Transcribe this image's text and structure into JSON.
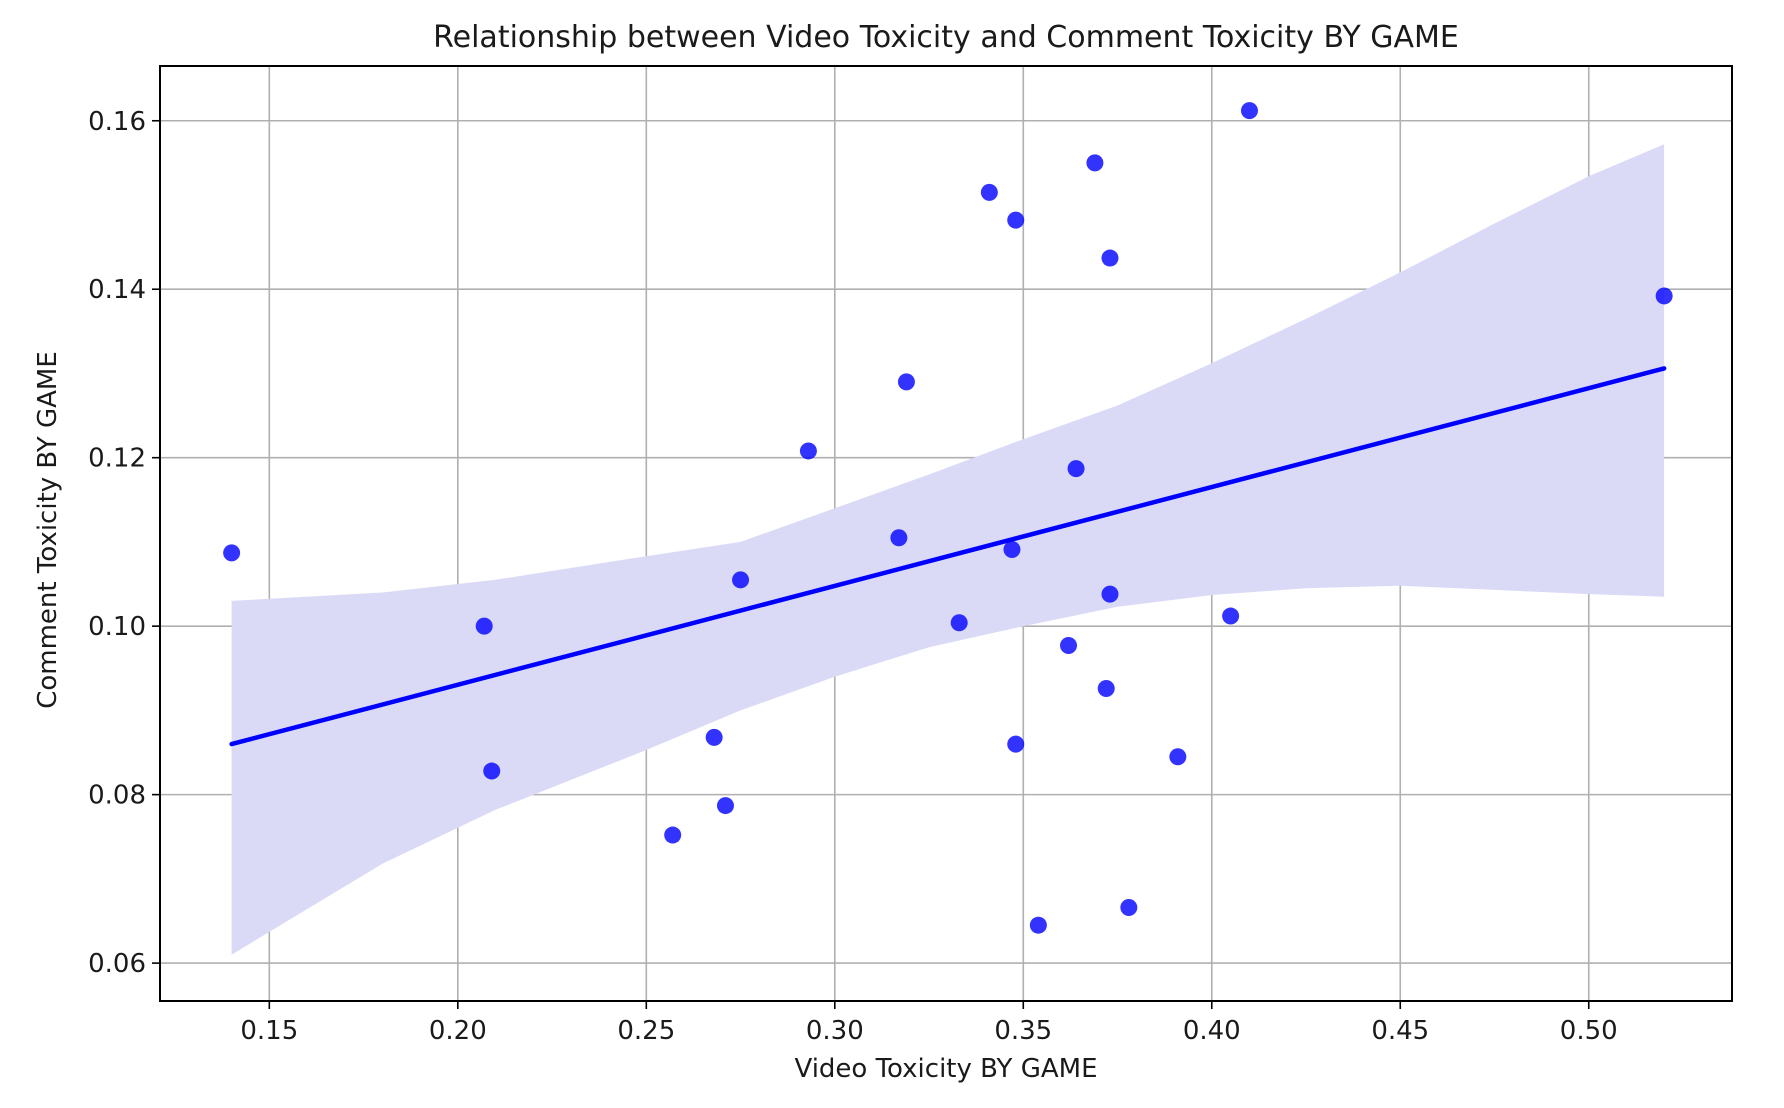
{
  "chart_data": {
    "type": "scatter",
    "title": "Relationship between Video Toxicity and Comment Toxicity BY GAME",
    "xlabel": "Video Toxicity BY GAME",
    "ylabel": "Comment Toxicity BY GAME",
    "xlim": [
      0.121,
      0.538
    ],
    "ylim": [
      0.0555,
      0.1665
    ],
    "x_ticks": [
      0.15,
      0.2,
      0.25,
      0.3,
      0.35,
      0.4,
      0.45,
      0.5
    ],
    "x_tick_labels": [
      "0.15",
      "0.20",
      "0.25",
      "0.30",
      "0.35",
      "0.40",
      "0.45",
      "0.50"
    ],
    "y_ticks": [
      0.06,
      0.08,
      0.1,
      0.12,
      0.14,
      0.16
    ],
    "y_tick_labels": [
      "0.06",
      "0.08",
      "0.10",
      "0.12",
      "0.14",
      "0.16"
    ],
    "grid": true,
    "legend": "none",
    "colors": {
      "points": "#0000ff",
      "regression_line": "#0000ff",
      "confidence_band": "#dadaf7",
      "grid": "#b0b0b0",
      "axes": "#000000"
    },
    "points": [
      {
        "x": 0.14,
        "y": 0.1087
      },
      {
        "x": 0.207,
        "y": 0.1
      },
      {
        "x": 0.209,
        "y": 0.0828
      },
      {
        "x": 0.257,
        "y": 0.0752
      },
      {
        "x": 0.268,
        "y": 0.0868
      },
      {
        "x": 0.271,
        "y": 0.0787
      },
      {
        "x": 0.275,
        "y": 0.1055
      },
      {
        "x": 0.293,
        "y": 0.1208
      },
      {
        "x": 0.317,
        "y": 0.1105
      },
      {
        "x": 0.319,
        "y": 0.129
      },
      {
        "x": 0.333,
        "y": 0.1004
      },
      {
        "x": 0.341,
        "y": 0.1515
      },
      {
        "x": 0.347,
        "y": 0.1091
      },
      {
        "x": 0.348,
        "y": 0.1482
      },
      {
        "x": 0.348,
        "y": 0.086
      },
      {
        "x": 0.354,
        "y": 0.0645
      },
      {
        "x": 0.362,
        "y": 0.0977
      },
      {
        "x": 0.364,
        "y": 0.1187
      },
      {
        "x": 0.369,
        "y": 0.155
      },
      {
        "x": 0.372,
        "y": 0.0926
      },
      {
        "x": 0.373,
        "y": 0.1437
      },
      {
        "x": 0.373,
        "y": 0.1038
      },
      {
        "x": 0.378,
        "y": 0.0666
      },
      {
        "x": 0.391,
        "y": 0.0845
      },
      {
        "x": 0.405,
        "y": 0.1012
      },
      {
        "x": 0.41,
        "y": 0.1612
      },
      {
        "x": 0.52,
        "y": 0.1392
      }
    ],
    "regression_line": {
      "x": [
        0.14,
        0.52
      ],
      "y": [
        0.086,
        0.1306
      ]
    },
    "confidence_band": {
      "x": [
        0.14,
        0.18,
        0.21,
        0.25,
        0.275,
        0.3,
        0.325,
        0.35,
        0.375,
        0.4,
        0.425,
        0.45,
        0.475,
        0.5,
        0.52
      ],
      "lower": [
        0.061,
        0.0718,
        0.0782,
        0.0853,
        0.09,
        0.094,
        0.0975,
        0.1,
        0.1023,
        0.1037,
        0.1045,
        0.1048,
        0.1043,
        0.1038,
        0.1035
      ],
      "upper": [
        0.103,
        0.104,
        0.1055,
        0.1083,
        0.11,
        0.114,
        0.118,
        0.1222,
        0.1262,
        0.1312,
        0.1365,
        0.142,
        0.1478,
        0.1534,
        0.1572
      ]
    }
  }
}
